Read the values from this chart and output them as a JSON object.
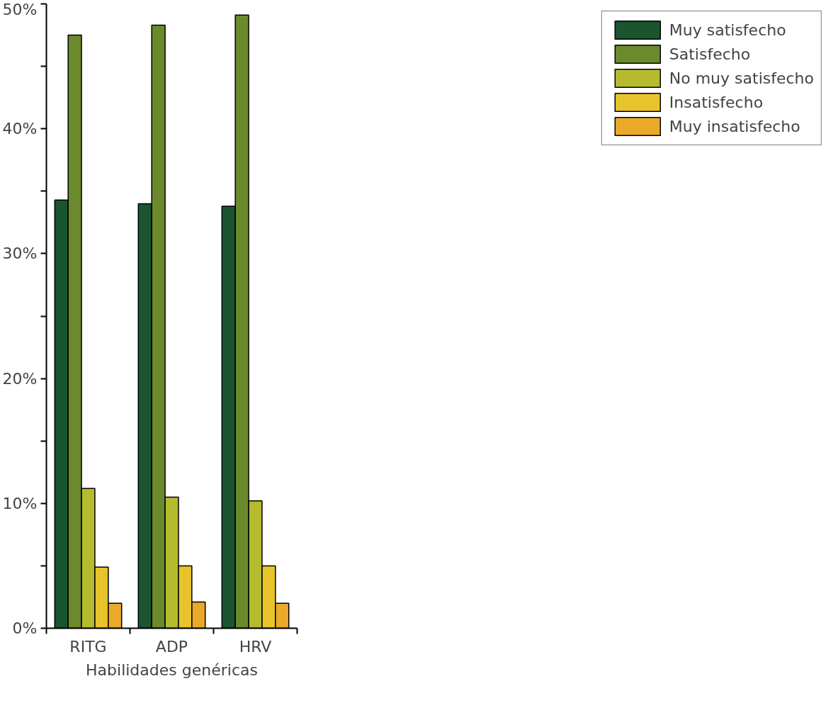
{
  "chart_data": {
    "type": "bar",
    "xlabel": "Habilidades genéricas",
    "categories": [
      "RITG",
      "ADP",
      "HRV"
    ],
    "series": [
      {
        "name": "Muy satisfecho",
        "color": "#1a5530",
        "values": [
          34.3,
          34.0,
          33.8
        ]
      },
      {
        "name": "Satisfecho",
        "color": "#6a8a2c",
        "values": [
          47.5,
          48.3,
          49.1
        ]
      },
      {
        "name": "No muy satisfecho",
        "color": "#b5bb2f",
        "values": [
          11.2,
          10.5,
          10.2
        ]
      },
      {
        "name": "Insatisfecho",
        "color": "#e8c42c",
        "values": [
          4.9,
          5.0,
          5.0
        ]
      },
      {
        "name": "Muy insatisfecho",
        "color": "#eba92a",
        "values": [
          2.0,
          2.1,
          2.0
        ]
      }
    ],
    "ylim": [
      0,
      50
    ],
    "yticks": [
      {
        "value": 0,
        "label": "0%"
      },
      {
        "value": 5,
        "label": null
      },
      {
        "value": 10,
        "label": "10%"
      },
      {
        "value": 15,
        "label": null
      },
      {
        "value": 20,
        "label": "20%"
      },
      {
        "value": 25,
        "label": null
      },
      {
        "value": 30,
        "label": "30%"
      },
      {
        "value": 35,
        "label": null
      },
      {
        "value": 40,
        "label": "40%"
      },
      {
        "value": 45,
        "label": null
      },
      {
        "value": 50,
        "label": "50%"
      }
    ],
    "grid": false,
    "legend": "right"
  }
}
